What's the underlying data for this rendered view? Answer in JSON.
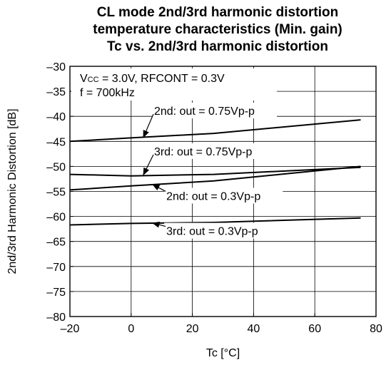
{
  "chart_data": {
    "type": "line",
    "title_lines": [
      "CL mode 2nd/3rd harmonic distortion",
      "temperature characteristics (Min. gain)",
      "Tc vs. 2nd/3rd harmonic distortion"
    ],
    "xlabel": "Tc [°C]",
    "ylabel": "2nd/3rd Harmonic Distortion [dB]",
    "xlim": [
      -20,
      80
    ],
    "ylim": [
      -80,
      -30
    ],
    "x_ticks": [
      -20,
      0,
      20,
      40,
      60,
      80
    ],
    "x_tick_labels": [
      "–20",
      "0",
      "20",
      "40",
      "60",
      "80"
    ],
    "y_ticks": [
      -80,
      -75,
      -70,
      -65,
      -60,
      -55,
      -50,
      -45,
      -40,
      -35,
      -30
    ],
    "y_tick_labels": [
      "–80",
      "–75",
      "–70",
      "–65",
      "–60",
      "–55",
      "–50",
      "–45",
      "–40",
      "–35",
      "–30"
    ],
    "grid": true,
    "conditions": {
      "vcc_label": "V",
      "vcc_sub": "CC",
      "vcc_rest": " = 3.0V, RFCONT = 0.3V",
      "freq": "f = 700kHz"
    },
    "series": [
      {
        "name": "2nd: out = 0.75Vp-p",
        "x": [
          -20,
          0,
          27,
          75
        ],
        "y": [
          -45.0,
          -44.3,
          -43.4,
          -40.7
        ]
      },
      {
        "name": "3rd: out = 0.75Vp-p",
        "x": [
          -20,
          0,
          27,
          75
        ],
        "y": [
          -51.6,
          -51.9,
          -51.6,
          -50.2
        ]
      },
      {
        "name": "2nd: out = 0.3Vp-p",
        "x": [
          -20,
          0,
          27,
          75
        ],
        "y": [
          -54.7,
          -53.9,
          -52.9,
          -50.0
        ]
      },
      {
        "name": "3rd: out = 0.3Vp-p",
        "x": [
          -20,
          0,
          27,
          75
        ],
        "y": [
          -61.7,
          -61.4,
          -61.2,
          -60.3
        ]
      }
    ],
    "annotations": [
      {
        "text": "2nd: out = 0.75Vp-p",
        "label_x": 4,
        "label_y": -39.7,
        "arrow_to": [
          4,
          -44.2
        ]
      },
      {
        "text": "3rd: out = 0.75Vp-p",
        "label_x": 4,
        "label_y": -47.8,
        "arrow_to": [
          4,
          -51.7
        ]
      },
      {
        "text": "2nd: out = 0.3Vp-p",
        "label_x": 8,
        "label_y": -56.7,
        "arrow_to": [
          7,
          -53.6
        ]
      },
      {
        "text": "3rd: out = 0.3Vp-p",
        "label_x": 8,
        "label_y": -63.7,
        "arrow_to": [
          7,
          -61.3
        ]
      }
    ]
  }
}
